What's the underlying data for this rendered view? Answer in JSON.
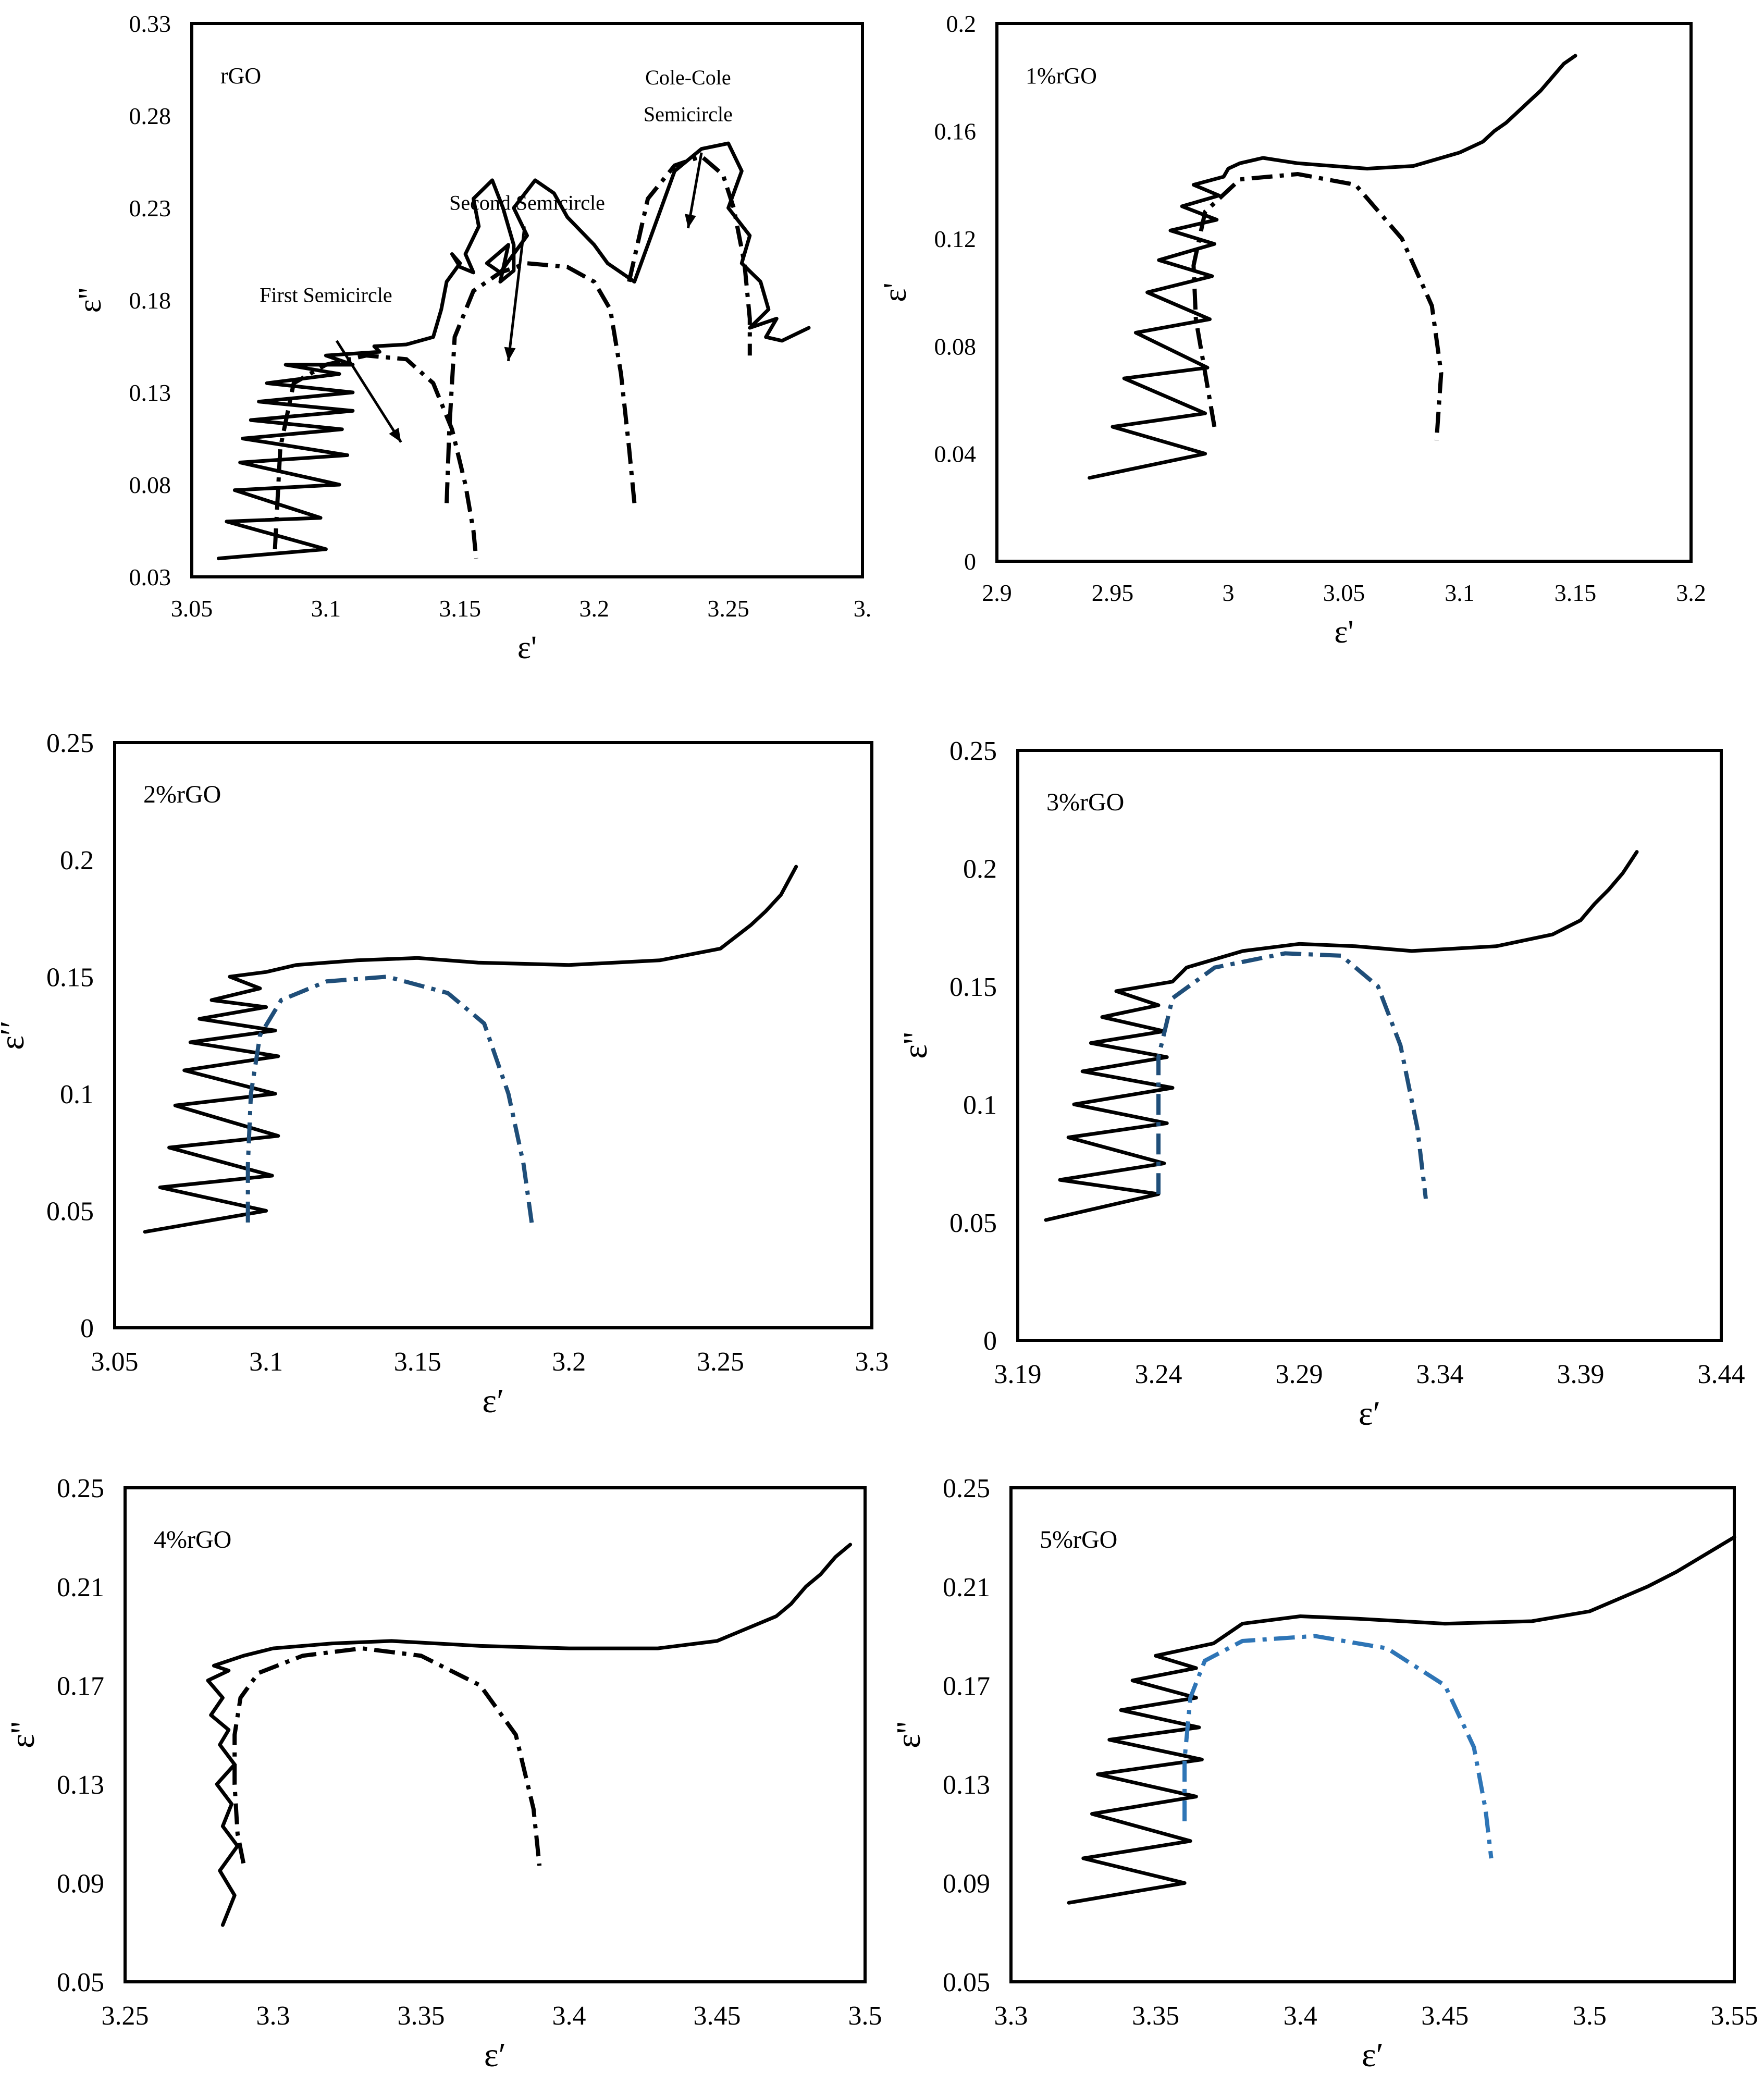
{
  "figure": {
    "colors": {
      "axis": "#000000",
      "measured": "#000000",
      "fit_black": "#000000",
      "fit_navy": "#1f4e79",
      "fit_blue": "#2e75b6"
    }
  },
  "chart_data": [
    {
      "type": "line",
      "panel_label": "rGO",
      "xlabel": "ε'",
      "ylabel": "ε''",
      "xlim": [
        3.05,
        3.3
      ],
      "ylim": [
        0.03,
        0.33
      ],
      "xticks": [
        "3.05",
        "3.1",
        "3.15",
        "3.2",
        "3.25",
        "3."
      ],
      "yticks": [
        "0.03",
        "0.08",
        "0.13",
        "0.18",
        "0.23",
        "0.28",
        "0.33"
      ],
      "annotations": [
        {
          "text": "Cole-Cole",
          "x": 3.235,
          "y": 0.297
        },
        {
          "text": "Semicircle",
          "x": 3.235,
          "y": 0.277
        },
        {
          "text": "Second Semicircle",
          "x": 3.175,
          "y": 0.229
        },
        {
          "text": "First Semicircle",
          "x": 3.1,
          "y": 0.179
        }
      ],
      "arrows": [
        {
          "from": [
            3.24,
            0.26
          ],
          "to": [
            3.235,
            0.219
          ]
        },
        {
          "from": [
            3.174,
            0.22
          ],
          "to": [
            3.168,
            0.147
          ]
        },
        {
          "from": [
            3.104,
            0.158
          ],
          "to": [
            3.128,
            0.103
          ]
        }
      ],
      "series": [
        {
          "name": "measured",
          "style": "solid",
          "color": "#000000",
          "x": [
            3.06,
            3.1,
            3.063,
            3.098,
            3.066,
            3.105,
            3.068,
            3.108,
            3.069,
            3.106,
            3.072,
            3.11,
            3.075,
            3.11,
            3.078,
            3.105,
            3.085,
            3.11,
            3.1,
            3.12,
            3.118,
            3.13,
            3.135,
            3.14,
            3.143,
            3.145,
            3.15,
            3.147,
            3.15,
            3.155,
            3.152,
            3.157,
            3.155,
            3.162,
            3.166,
            3.17,
            3.17,
            3.165,
            3.168,
            3.16,
            3.165,
            3.175,
            3.17,
            3.178,
            3.185,
            3.19,
            3.2,
            3.205,
            3.21,
            3.215,
            3.22,
            3.23,
            3.24,
            3.25,
            3.255,
            3.25,
            3.258,
            3.255,
            3.262,
            3.265,
            3.258,
            3.268,
            3.264,
            3.27,
            3.28
          ],
          "y": [
            0.04,
            0.045,
            0.06,
            0.062,
            0.077,
            0.08,
            0.092,
            0.096,
            0.105,
            0.11,
            0.115,
            0.12,
            0.125,
            0.13,
            0.135,
            0.14,
            0.145,
            0.145,
            0.15,
            0.152,
            0.155,
            0.156,
            0.158,
            0.16,
            0.175,
            0.19,
            0.2,
            0.205,
            0.198,
            0.195,
            0.205,
            0.22,
            0.235,
            0.245,
            0.23,
            0.21,
            0.196,
            0.19,
            0.21,
            0.2,
            0.195,
            0.215,
            0.23,
            0.245,
            0.238,
            0.225,
            0.21,
            0.2,
            0.195,
            0.19,
            0.21,
            0.25,
            0.262,
            0.265,
            0.25,
            0.23,
            0.215,
            0.2,
            0.19,
            0.175,
            0.165,
            0.17,
            0.16,
            0.158,
            0.165
          ]
        },
        {
          "name": "first semicircle fit",
          "style": "dash-dot",
          "color": "#000000",
          "x": [
            3.081,
            3.083,
            3.088,
            3.1,
            3.115,
            3.13,
            3.14,
            3.147,
            3.152,
            3.155,
            3.156
          ],
          "y": [
            0.045,
            0.1,
            0.135,
            0.145,
            0.15,
            0.148,
            0.135,
            0.11,
            0.08,
            0.055,
            0.04
          ]
        },
        {
          "name": "second semicircle fit",
          "style": "dash-dot",
          "color": "#000000",
          "x": [
            3.145,
            3.146,
            3.148,
            3.155,
            3.165,
            3.175,
            3.19,
            3.2,
            3.206,
            3.21,
            3.213,
            3.215
          ],
          "y": [
            0.07,
            0.11,
            0.16,
            0.185,
            0.195,
            0.2,
            0.198,
            0.19,
            0.175,
            0.14,
            0.1,
            0.07
          ]
        },
        {
          "name": "Cole-Cole semicircle fit",
          "style": "dash-dot",
          "color": "#000000",
          "x": [
            3.213,
            3.22,
            3.23,
            3.24,
            3.248,
            3.252,
            3.256,
            3.258,
            3.258
          ],
          "y": [
            0.19,
            0.235,
            0.253,
            0.258,
            0.248,
            0.23,
            0.2,
            0.17,
            0.15
          ]
        }
      ]
    },
    {
      "type": "line",
      "panel_label": "1%rGO",
      "xlabel": "ε'",
      "ylabel": "ε'",
      "xlim": [
        2.9,
        3.2
      ],
      "ylim": [
        0,
        0.2
      ],
      "xticks": [
        "2.9",
        "2.95",
        "3",
        "3.05",
        "3.1",
        "3.15",
        "3.2"
      ],
      "yticks": [
        "0",
        "0.04",
        "0.08",
        "0.12",
        "0.16",
        "0.2"
      ],
      "series": [
        {
          "name": "measured",
          "style": "solid",
          "color": "#000000",
          "x": [
            2.94,
            2.99,
            2.95,
            2.99,
            2.955,
            2.991,
            2.96,
            2.992,
            2.965,
            2.993,
            2.97,
            2.994,
            2.975,
            2.995,
            2.98,
            2.996,
            2.985,
            2.998,
            3.0,
            3.005,
            3.015,
            3.03,
            3.06,
            3.08,
            3.1,
            3.11,
            3.115,
            3.12,
            3.125,
            3.13,
            3.135,
            3.14,
            3.145,
            3.15
          ],
          "y": [
            0.031,
            0.04,
            0.05,
            0.055,
            0.068,
            0.072,
            0.085,
            0.09,
            0.1,
            0.106,
            0.112,
            0.118,
            0.123,
            0.127,
            0.132,
            0.136,
            0.14,
            0.143,
            0.146,
            0.148,
            0.15,
            0.148,
            0.146,
            0.147,
            0.152,
            0.156,
            0.16,
            0.163,
            0.167,
            0.171,
            0.175,
            0.18,
            0.185,
            0.188
          ]
        },
        {
          "name": "Cole-Cole fit",
          "style": "dash-dot",
          "color": "#000000",
          "x": [
            2.994,
            2.99,
            2.986,
            2.985,
            2.99,
            3.005,
            3.03,
            3.055,
            3.075,
            3.088,
            3.092,
            3.09
          ],
          "y": [
            0.05,
            0.07,
            0.09,
            0.11,
            0.13,
            0.142,
            0.144,
            0.14,
            0.12,
            0.095,
            0.07,
            0.045
          ]
        }
      ]
    },
    {
      "type": "line",
      "panel_label": "2%rGO",
      "xlabel": "ε′",
      "ylabel": "ε′′",
      "xlim": [
        3.05,
        3.3
      ],
      "ylim": [
        0,
        0.25
      ],
      "xticks": [
        "3.05",
        "3.1",
        "3.15",
        "3.2",
        "3.25",
        "3.3"
      ],
      "yticks": [
        "0",
        "0.05",
        "0.1",
        "0.15",
        "0.2",
        "0.25"
      ],
      "series": [
        {
          "name": "measured",
          "style": "solid",
          "color": "#000000",
          "x": [
            3.06,
            3.1,
            3.065,
            3.102,
            3.068,
            3.104,
            3.07,
            3.103,
            3.073,
            3.104,
            3.075,
            3.103,
            3.078,
            3.1,
            3.082,
            3.098,
            3.088,
            3.1,
            3.11,
            3.13,
            3.15,
            3.17,
            3.2,
            3.23,
            3.25,
            3.255,
            3.26,
            3.265,
            3.27,
            3.275
          ],
          "y": [
            0.041,
            0.05,
            0.06,
            0.065,
            0.077,
            0.082,
            0.095,
            0.1,
            0.11,
            0.116,
            0.122,
            0.127,
            0.132,
            0.137,
            0.14,
            0.145,
            0.15,
            0.152,
            0.155,
            0.157,
            0.158,
            0.156,
            0.155,
            0.157,
            0.162,
            0.167,
            0.172,
            0.178,
            0.185,
            0.197
          ]
        },
        {
          "name": "Cole-Cole fit",
          "style": "dash-dot",
          "color": "#1f4e79",
          "x": [
            3.094,
            3.094,
            3.095,
            3.098,
            3.105,
            3.12,
            3.14,
            3.16,
            3.172,
            3.18,
            3.185,
            3.188
          ],
          "y": [
            0.045,
            0.07,
            0.1,
            0.125,
            0.14,
            0.148,
            0.15,
            0.143,
            0.13,
            0.1,
            0.07,
            0.042
          ]
        }
      ]
    },
    {
      "type": "line",
      "panel_label": "3%rGO",
      "xlabel": "ε′",
      "ylabel": "ε''",
      "xlim": [
        3.19,
        3.44
      ],
      "ylim": [
        0,
        0.25
      ],
      "xticks": [
        "3.19",
        "3.24",
        "3.29",
        "3.34",
        "3.39",
        "3.44"
      ],
      "yticks": [
        "0",
        "0.05",
        "0.1",
        "0.15",
        "0.2",
        "0.25"
      ],
      "series": [
        {
          "name": "measured",
          "style": "solid",
          "color": "#000000",
          "x": [
            3.2,
            3.24,
            3.205,
            3.242,
            3.208,
            3.243,
            3.21,
            3.245,
            3.213,
            3.243,
            3.216,
            3.242,
            3.22,
            3.24,
            3.225,
            3.245,
            3.25,
            3.27,
            3.29,
            3.31,
            3.33,
            3.36,
            3.38,
            3.39,
            3.395,
            3.4,
            3.405,
            3.41
          ],
          "y": [
            0.051,
            0.062,
            0.068,
            0.075,
            0.086,
            0.092,
            0.1,
            0.107,
            0.114,
            0.12,
            0.126,
            0.131,
            0.137,
            0.142,
            0.148,
            0.152,
            0.158,
            0.165,
            0.168,
            0.167,
            0.165,
            0.167,
            0.172,
            0.178,
            0.185,
            0.191,
            0.198,
            0.207
          ]
        },
        {
          "name": "Cole-Cole fit",
          "style": "dash-dot",
          "color": "#1f4e79",
          "x": [
            3.24,
            3.24,
            3.24,
            3.245,
            3.26,
            3.285,
            3.305,
            3.318,
            3.326,
            3.332,
            3.335
          ],
          "y": [
            0.062,
            0.09,
            0.12,
            0.145,
            0.158,
            0.164,
            0.163,
            0.15,
            0.125,
            0.09,
            0.06
          ]
        }
      ]
    },
    {
      "type": "line",
      "panel_label": "4%rGO",
      "xlabel": "ε′",
      "ylabel": "ε''",
      "xlim": [
        3.25,
        3.5
      ],
      "ylim": [
        0.05,
        0.25
      ],
      "xticks": [
        "3.25",
        "3.3",
        "3.35",
        "3.4",
        "3.45",
        "3.5"
      ],
      "yticks": [
        "0.05",
        "0.09",
        "0.13",
        "0.17",
        "0.21",
        "0.25"
      ],
      "series": [
        {
          "name": "measured",
          "style": "solid",
          "color": "#000000",
          "x": [
            3.283,
            3.287,
            3.282,
            3.288,
            3.283,
            3.286,
            3.281,
            3.287,
            3.282,
            3.285,
            3.279,
            3.283,
            3.278,
            3.285,
            3.28,
            3.29,
            3.3,
            3.32,
            3.34,
            3.37,
            3.4,
            3.43,
            3.45,
            3.46,
            3.47,
            3.475,
            3.48,
            3.485,
            3.49,
            3.495
          ],
          "y": [
            0.073,
            0.085,
            0.095,
            0.105,
            0.113,
            0.122,
            0.13,
            0.138,
            0.146,
            0.152,
            0.158,
            0.165,
            0.172,
            0.176,
            0.178,
            0.182,
            0.185,
            0.187,
            0.188,
            0.186,
            0.185,
            0.185,
            0.188,
            0.193,
            0.198,
            0.203,
            0.21,
            0.215,
            0.222,
            0.227
          ]
        },
        {
          "name": "Cole-Cole fit",
          "style": "dash-dot",
          "color": "#000000",
          "x": [
            3.29,
            3.288,
            3.287,
            3.287,
            3.289,
            3.295,
            3.31,
            3.33,
            3.35,
            3.37,
            3.382,
            3.388,
            3.39
          ],
          "y": [
            0.098,
            0.11,
            0.13,
            0.15,
            0.165,
            0.175,
            0.182,
            0.185,
            0.182,
            0.17,
            0.15,
            0.12,
            0.097
          ]
        }
      ]
    },
    {
      "type": "line",
      "panel_label": "5%rGO",
      "xlabel": "ε′",
      "ylabel": "ε''",
      "xlim": [
        3.3,
        3.55
      ],
      "ylim": [
        0.05,
        0.25
      ],
      "xticks": [
        "3.3",
        "3.35",
        "3.4",
        "3.45",
        "3.5",
        "3.55"
      ],
      "yticks": [
        "0.05",
        "0.09",
        "0.13",
        "0.17",
        "0.21",
        "0.25"
      ],
      "series": [
        {
          "name": "measured",
          "style": "solid",
          "color": "#000000",
          "x": [
            3.32,
            3.36,
            3.325,
            3.362,
            3.328,
            3.364,
            3.33,
            3.366,
            3.334,
            3.365,
            3.338,
            3.364,
            3.342,
            3.364,
            3.35,
            3.37,
            3.38,
            3.4,
            3.42,
            3.45,
            3.48,
            3.5,
            3.51,
            3.52,
            3.53,
            3.54,
            3.55
          ],
          "y": [
            0.082,
            0.09,
            0.1,
            0.107,
            0.118,
            0.125,
            0.134,
            0.14,
            0.148,
            0.153,
            0.16,
            0.165,
            0.172,
            0.177,
            0.182,
            0.187,
            0.195,
            0.198,
            0.197,
            0.195,
            0.196,
            0.2,
            0.205,
            0.21,
            0.216,
            0.223,
            0.23
          ]
        },
        {
          "name": "Cole-Cole fit",
          "style": "dash-dot",
          "color": "#2e75b6",
          "x": [
            3.36,
            3.36,
            3.362,
            3.367,
            3.38,
            3.405,
            3.43,
            3.45,
            3.46,
            3.464,
            3.466
          ],
          "y": [
            0.115,
            0.14,
            0.165,
            0.18,
            0.188,
            0.19,
            0.185,
            0.17,
            0.145,
            0.12,
            0.1
          ]
        }
      ]
    }
  ]
}
